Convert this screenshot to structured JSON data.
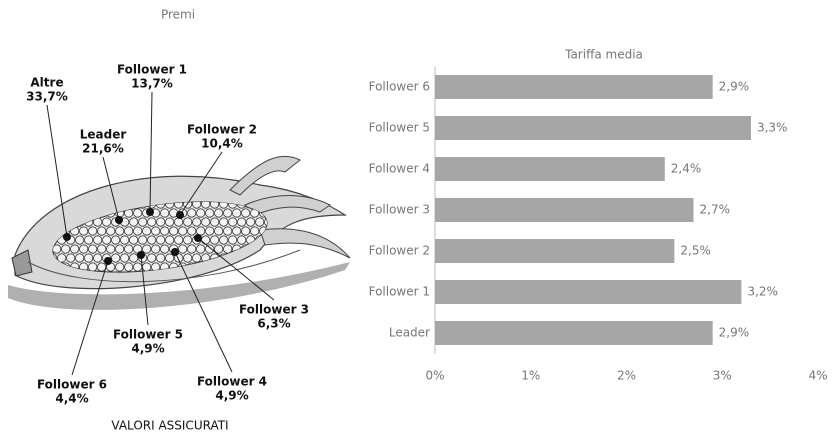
{
  "chart_data": [
    {
      "type": "pictograph",
      "title": "Premi",
      "caption": "VALORI ASSICURATI",
      "categories": [
        "Altre",
        "Leader",
        "Follower 1",
        "Follower 2",
        "Follower 3",
        "Follower 5",
        "Follower 4",
        "Follower 6"
      ],
      "values": [
        33.7,
        21.6,
        13.7,
        10.4,
        6.3,
        4.9,
        4.9,
        4.4
      ],
      "value_labels": [
        "33,7%",
        "21,6%",
        "13,7%",
        "10,4%",
        "6,3%",
        "4,9%",
        "4,9%",
        "4,4%"
      ]
    },
    {
      "type": "hbar",
      "title": "Tariffa media",
      "categories": [
        "Follower 6",
        "Follower 5",
        "Follower 4",
        "Follower 3",
        "Follower 2",
        "Follower 1",
        "Leader"
      ],
      "values": [
        2.9,
        3.3,
        2.4,
        2.7,
        2.5,
        3.2,
        2.9
      ],
      "value_labels": [
        "2,9%",
        "3,3%",
        "2,4%",
        "2,7%",
        "2,5%",
        "3,2%",
        "2,9%"
      ],
      "color": "#a6a6a6",
      "xlim": [
        0,
        4
      ],
      "xticks": [
        {
          "value": 0,
          "label": "0%"
        },
        {
          "value": 1,
          "label": "1%"
        },
        {
          "value": 2,
          "label": "2%"
        },
        {
          "value": 3,
          "label": "3%"
        },
        {
          "value": 4,
          "label": "4%"
        }
      ],
      "grid": false
    }
  ]
}
